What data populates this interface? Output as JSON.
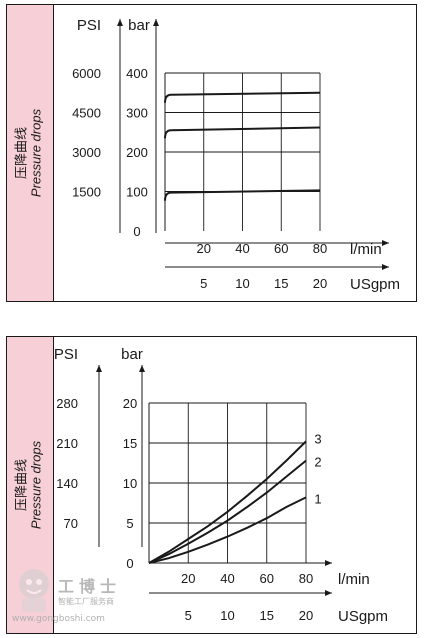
{
  "side_label": {
    "cn": "压降曲线",
    "en": "Pressure drops"
  },
  "watermark": {
    "cn": "工博士",
    "sub": "智能工厂服务商",
    "url": "www.gongboshi.com"
  },
  "chart_data": [
    {
      "type": "line",
      "unit_left": "PSI",
      "unit_right": "bar",
      "psi_ticks": [
        "6000",
        "4500",
        "3000",
        "1500"
      ],
      "bar_ticks": [
        "400",
        "300",
        "200",
        "100"
      ],
      "origin": "0",
      "x_ticks": [
        "20",
        "40",
        "60",
        "80"
      ],
      "x_unit": "l/min",
      "usgpm_ticks": [
        "5",
        "10",
        "15",
        "20"
      ],
      "usgpm_unit": "USgpm",
      "xlim": [
        0,
        80
      ],
      "ylim": [
        0,
        400
      ],
      "grid": true,
      "series": [
        {
          "x": [
            0,
            80
          ],
          "y": [
            345,
            350
          ]
        },
        {
          "x": [
            0,
            80
          ],
          "y": [
            255,
            262
          ]
        },
        {
          "x": [
            0,
            80
          ],
          "y": [
            97,
            103
          ]
        }
      ]
    },
    {
      "type": "line",
      "unit_left": "PSI",
      "unit_right": "bar",
      "psi_ticks": [
        "280",
        "210",
        "140",
        "70"
      ],
      "bar_ticks": [
        "20",
        "15",
        "10",
        "5"
      ],
      "origin": "0",
      "x_ticks": [
        "20",
        "40",
        "60",
        "80"
      ],
      "x_unit": "l/min",
      "usgpm_ticks": [
        "5",
        "10",
        "15",
        "20"
      ],
      "usgpm_unit": "USgpm",
      "xlim": [
        0,
        80
      ],
      "ylim": [
        0,
        20
      ],
      "grid": true,
      "series": [
        {
          "name": "3",
          "x": [
            0,
            10,
            20,
            30,
            40,
            50,
            60,
            70,
            80
          ],
          "y": [
            0,
            1.4,
            3.0,
            4.6,
            6.4,
            8.4,
            10.5,
            12.8,
            15.2
          ]
        },
        {
          "name": "2",
          "x": [
            0,
            10,
            20,
            30,
            40,
            50,
            60,
            70,
            80
          ],
          "y": [
            0,
            1.1,
            2.4,
            3.8,
            5.3,
            7.0,
            8.8,
            10.8,
            12.8
          ]
        },
        {
          "name": "1",
          "x": [
            0,
            10,
            20,
            30,
            40,
            50,
            60,
            70,
            80
          ],
          "y": [
            0,
            0.6,
            1.4,
            2.3,
            3.3,
            4.4,
            5.6,
            7.0,
            8.2
          ]
        }
      ]
    }
  ]
}
